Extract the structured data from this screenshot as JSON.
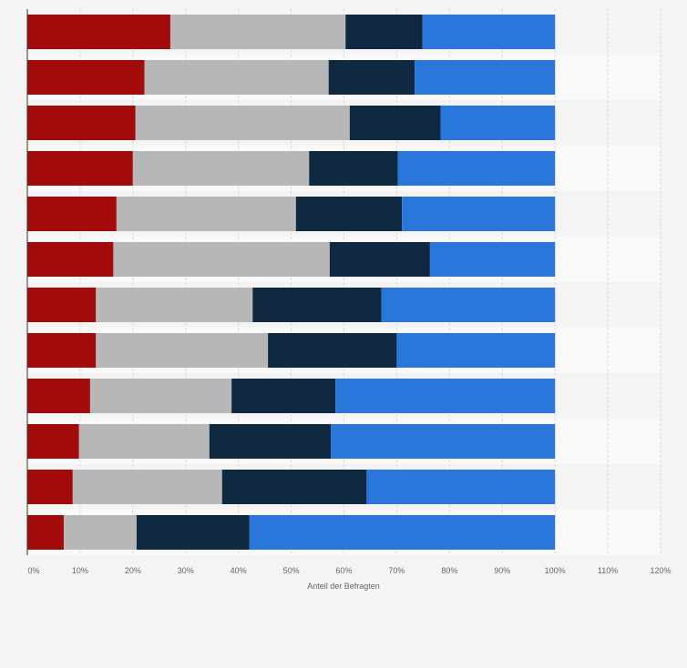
{
  "chart_data": {
    "type": "bar",
    "orientation": "horizontal",
    "stacked": true,
    "xlabel": "Anteil der Befragten",
    "xlim": [
      0,
      120
    ],
    "xticks": [
      "0%",
      "10%",
      "20%",
      "30%",
      "40%",
      "50%",
      "60%",
      "70%",
      "80%",
      "90%",
      "100%",
      "110%",
      "120%"
    ],
    "grid": true,
    "series": [
      {
        "color": "#a30a0a",
        "values": [
          27.1,
          22.2,
          20.5,
          20.0,
          16.9,
          16.3,
          13.0,
          13.0,
          11.9,
          9.8,
          8.6,
          6.9
        ]
      },
      {
        "color": "#b7b7b7",
        "values": [
          33.2,
          34.9,
          40.6,
          33.4,
          34.0,
          41.0,
          29.7,
          32.6,
          26.8,
          24.7,
          28.3,
          13.8
        ]
      },
      {
        "color": "#0f2940",
        "values": [
          14.6,
          16.3,
          17.2,
          16.8,
          20.1,
          19.0,
          24.4,
          24.4,
          19.7,
          23.0,
          27.4,
          21.4
        ]
      },
      {
        "color": "#2a77dc",
        "values": [
          25.1,
          26.6,
          21.7,
          29.8,
          29.0,
          23.7,
          32.9,
          30.0,
          41.6,
          42.5,
          35.7,
          57.9
        ]
      }
    ]
  }
}
